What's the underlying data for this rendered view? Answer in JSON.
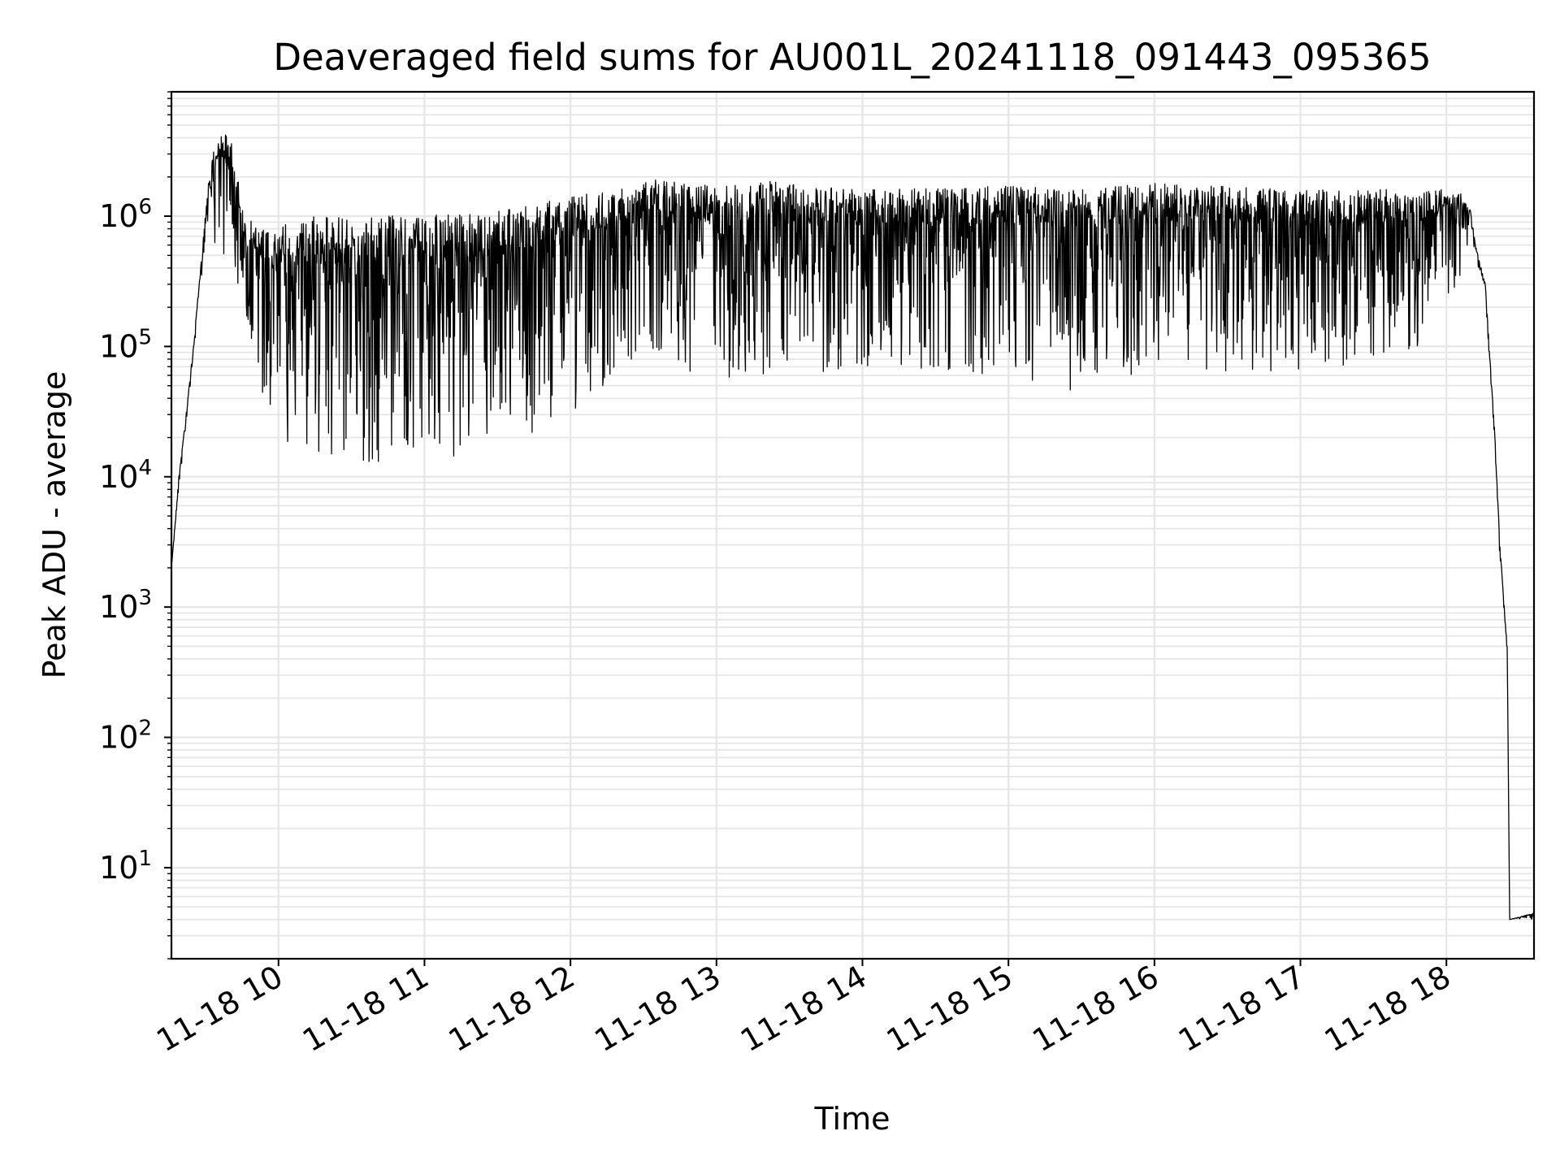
{
  "chart_data": {
    "type": "line",
    "title": "Deaveraged field sums for AU001L_20241118_091443_095365",
    "xlabel": "Time",
    "ylabel": "Peak ADU - average",
    "yscale": "log",
    "ylim": [
      2,
      9000000
    ],
    "xlim": [
      "2024-11-18 09:16",
      "2024-11-18 18:36"
    ],
    "grid": "on (major and minor, light gray)",
    "line_color": "#000000",
    "x_ticks": [
      {
        "label": "11-18 10",
        "time": "2024-11-18 10:00"
      },
      {
        "label": "11-18 11",
        "time": "2024-11-18 11:00"
      },
      {
        "label": "11-18 12",
        "time": "2024-11-18 12:00"
      },
      {
        "label": "11-18 13",
        "time": "2024-11-18 13:00"
      },
      {
        "label": "11-18 14",
        "time": "2024-11-18 14:00"
      },
      {
        "label": "11-18 15",
        "time": "2024-11-18 15:00"
      },
      {
        "label": "11-18 16",
        "time": "2024-11-18 16:00"
      },
      {
        "label": "11-18 17",
        "time": "2024-11-18 17:00"
      },
      {
        "label": "11-18 18",
        "time": "2024-11-18 18:00"
      }
    ],
    "y_ticks": [
      {
        "base": "10",
        "exp": "1",
        "value": 10
      },
      {
        "base": "10",
        "exp": "2",
        "value": 100
      },
      {
        "base": "10",
        "exp": "3",
        "value": 1000
      },
      {
        "base": "10",
        "exp": "4",
        "value": 10000
      },
      {
        "base": "10",
        "exp": "5",
        "value": 100000
      },
      {
        "base": "10",
        "exp": "6",
        "value": 1000000
      }
    ],
    "series": [
      {
        "envelope_points": [
          {
            "time": "2024-11-18 09:16",
            "upper": 2000,
            "lower": 2000
          },
          {
            "time": "2024-11-18 09:19",
            "upper": 10000,
            "lower": 8000
          },
          {
            "time": "2024-11-18 09:22",
            "upper": 30000,
            "lower": 25000
          },
          {
            "time": "2024-11-18 09:25",
            "upper": 100000,
            "lower": 80000
          },
          {
            "time": "2024-11-18 09:28",
            "upper": 400000,
            "lower": 300000
          },
          {
            "time": "2024-11-18 09:31",
            "upper": 1800000,
            "lower": 900000
          },
          {
            "time": "2024-11-18 09:34",
            "upper": 4000000,
            "lower": 600000
          },
          {
            "time": "2024-11-18 09:40",
            "upper": 4500000,
            "lower": 400000
          },
          {
            "time": "2024-11-18 09:46",
            "upper": 1000000,
            "lower": 200000
          },
          {
            "time": "2024-11-18 09:55",
            "upper": 800000,
            "lower": 30000
          },
          {
            "time": "2024-11-18 10:05",
            "upper": 1000000,
            "lower": 16000
          },
          {
            "time": "2024-11-18 10:30",
            "upper": 1000000,
            "lower": 14000
          },
          {
            "time": "2024-11-18 10:40",
            "upper": 1000000,
            "lower": 12000
          },
          {
            "time": "2024-11-18 11:00",
            "upper": 1050000,
            "lower": 13000
          },
          {
            "time": "2024-11-18 11:20",
            "upper": 1050000,
            "lower": 14000
          },
          {
            "time": "2024-11-18 11:40",
            "upper": 1200000,
            "lower": 20000
          },
          {
            "time": "2024-11-18 12:00",
            "upper": 1500000,
            "lower": 30000
          },
          {
            "time": "2024-11-18 12:20",
            "upper": 1600000,
            "lower": 60000
          },
          {
            "time": "2024-11-18 12:35",
            "upper": 1900000,
            "lower": 70000
          },
          {
            "time": "2024-11-18 13:00",
            "upper": 1700000,
            "lower": 60000
          },
          {
            "time": "2024-11-18 13:15",
            "upper": 1900000,
            "lower": 55000
          },
          {
            "time": "2024-11-18 14:00",
            "upper": 1600000,
            "lower": 70000
          },
          {
            "time": "2024-11-18 15:00",
            "upper": 1700000,
            "lower": 60000
          },
          {
            "time": "2024-11-18 15:30",
            "upper": 1600000,
            "lower": 40000
          },
          {
            "time": "2024-11-18 16:00",
            "upper": 1800000,
            "lower": 70000
          },
          {
            "time": "2024-11-18 17:00",
            "upper": 1600000,
            "lower": 60000
          },
          {
            "time": "2024-11-18 17:50",
            "upper": 1600000,
            "lower": 80000
          },
          {
            "time": "2024-11-18 18:05",
            "upper": 1600000,
            "lower": 300000
          },
          {
            "time": "2024-11-18 18:10",
            "upper": 1100000,
            "lower": 700000
          },
          {
            "time": "2024-11-18 18:12",
            "upper": 600000,
            "lower": 500000
          },
          {
            "time": "2024-11-18 18:16",
            "upper": 300000,
            "lower": 250000
          },
          {
            "time": "2024-11-18 18:20",
            "upper": 20000,
            "lower": 15000
          },
          {
            "time": "2024-11-18 18:22",
            "upper": 3000,
            "lower": 2000
          },
          {
            "time": "2024-11-18 18:25",
            "upper": 500,
            "lower": 450
          },
          {
            "time": "2024-11-18 18:26",
            "upper": 4,
            "lower": 4
          },
          {
            "time": "2024-11-18 18:36",
            "upper": 4.5,
            "lower": 4
          }
        ]
      }
    ]
  }
}
